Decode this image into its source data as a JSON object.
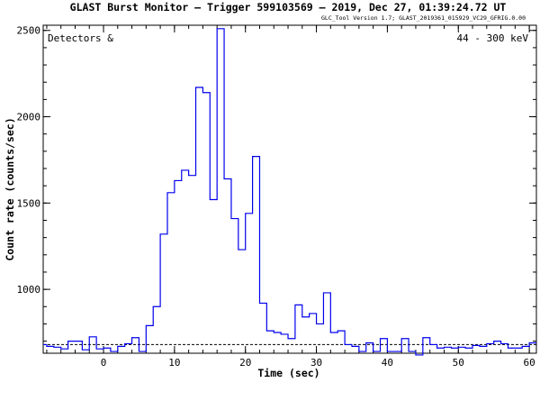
{
  "header": {
    "title": "GLAST Burst Monitor  –  Trigger 599103569  –  2019, Dec 27, 01:39:24.72 UT",
    "version": "GLC_Tool Version 1.7; GLAST_2019361_015929_VC29_GFRIG.0.00"
  },
  "annotations": {
    "left": "Detectors  &",
    "right": "44 - 300 keV"
  },
  "chart_data": {
    "type": "line",
    "style": "step",
    "xlabel": "Time (sec)",
    "ylabel": "Count rate (counts/sec)",
    "xlim": [
      -8.5,
      61
    ],
    "ylim": [
      630,
      2530
    ],
    "xticks": [
      0,
      10,
      20,
      30,
      40,
      50,
      60
    ],
    "yticks": [
      1000,
      1500,
      2000,
      2500
    ],
    "x_minor_step": 2,
    "y_minor_step": 100,
    "grid": false,
    "background_level": 680,
    "bin_edges": [
      -8.5,
      -8,
      -7,
      -6,
      -5,
      -4,
      -3,
      -2,
      -1,
      0,
      1,
      2,
      3,
      4,
      5,
      6,
      7,
      8,
      9,
      10,
      11,
      12,
      13,
      14,
      15,
      16,
      17,
      18,
      19,
      20,
      21,
      22,
      23,
      24,
      25,
      26,
      27,
      28,
      29,
      30,
      31,
      32,
      33,
      34,
      35,
      36,
      37,
      38,
      39,
      40,
      41,
      42,
      43,
      44,
      45,
      46,
      47,
      48,
      49,
      50,
      51,
      52,
      53,
      54,
      55,
      56,
      57,
      58,
      59,
      60,
      61
    ],
    "series": [
      {
        "color": "#0000ee",
        "values": [
          680,
          670,
          665,
          655,
          700,
          700,
          650,
          725,
          655,
          660,
          640,
          670,
          685,
          720,
          640,
          790,
          900,
          1320,
          1560,
          1630,
          1690,
          1660,
          2170,
          2140,
          1520,
          2510,
          1640,
          1410,
          1230,
          1440,
          1770,
          920,
          760,
          750,
          740,
          715,
          910,
          840,
          860,
          800,
          980,
          750,
          760,
          680,
          670,
          640,
          690,
          640,
          715,
          640,
          640,
          715,
          640,
          620,
          720,
          680,
          660,
          665,
          660,
          665,
          660,
          675,
          670,
          685,
          700,
          685,
          660,
          660,
          670,
          690
        ]
      }
    ]
  },
  "colors": {
    "series": "#0000ee",
    "axes": "#000000",
    "background_line": "#000000"
  }
}
